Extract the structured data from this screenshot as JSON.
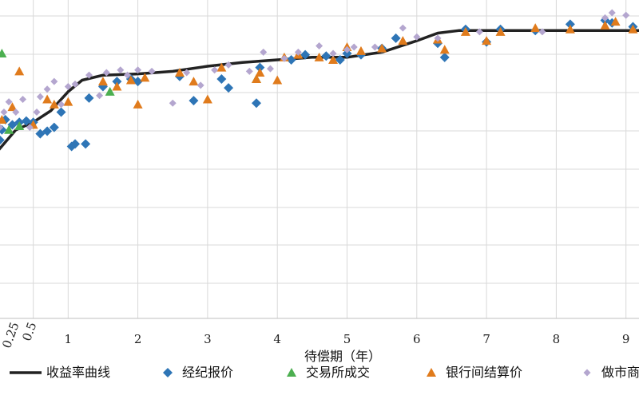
{
  "chart_data": {
    "type": "scatter",
    "title": "",
    "xlabel": "待偿期（年）",
    "ylabel": "",
    "xlim": [
      0,
      9.2
    ],
    "ylim": [
      -7.2,
      5.3
    ],
    "x_ticks": [
      {
        "value": 0.25,
        "label": "0.25",
        "rotated": true
      },
      {
        "value": 0.5,
        "label": "0.5",
        "rotated": true
      },
      {
        "value": 1,
        "label": "1"
      },
      {
        "value": 2,
        "label": "2"
      },
      {
        "value": 3,
        "label": "3"
      },
      {
        "value": 4,
        "label": "4"
      },
      {
        "value": 5,
        "label": "5"
      },
      {
        "value": 6,
        "label": "6"
      },
      {
        "value": 7,
        "label": "7"
      },
      {
        "value": 8,
        "label": "8"
      },
      {
        "value": 9,
        "label": "9"
      }
    ],
    "grid": "vertical and horizontal",
    "legend_position": "bottom",
    "series": [
      {
        "name": "收益率曲线",
        "kind": "line",
        "color": "#222222",
        "marker": "none",
        "points": [
          [
            0,
            -0.6
          ],
          [
            0.25,
            0.2
          ],
          [
            0.5,
            0.5
          ],
          [
            0.75,
            0.95
          ],
          [
            1,
            1.7
          ],
          [
            1.2,
            2.15
          ],
          [
            1.5,
            2.35
          ],
          [
            2,
            2.4
          ],
          [
            2.5,
            2.5
          ],
          [
            3,
            2.7
          ],
          [
            3.5,
            2.85
          ],
          [
            4,
            2.95
          ],
          [
            4.5,
            3.05
          ],
          [
            5,
            3.05
          ],
          [
            5.5,
            3.25
          ],
          [
            6,
            3.7
          ],
          [
            6.3,
            4.0
          ],
          [
            6.6,
            4.1
          ],
          [
            7,
            4.1
          ],
          [
            8,
            4.1
          ],
          [
            9,
            4.1
          ],
          [
            9.2,
            4.1
          ]
        ]
      },
      {
        "name": "经纪报价",
        "kind": "scatter",
        "color": "#2e75b6",
        "marker": "diamond",
        "points": [
          [
            0.02,
            -0.2
          ],
          [
            0.05,
            0.2
          ],
          [
            0.1,
            0.6
          ],
          [
            0.2,
            0.4
          ],
          [
            0.3,
            0.5
          ],
          [
            0.4,
            0.55
          ],
          [
            0.5,
            0.5
          ],
          [
            0.6,
            0.05
          ],
          [
            0.7,
            0.15
          ],
          [
            0.8,
            0.3
          ],
          [
            0.9,
            0.9
          ],
          [
            1.05,
            -0.45
          ],
          [
            1.1,
            -0.35
          ],
          [
            1.25,
            -0.35
          ],
          [
            1.3,
            1.45
          ],
          [
            1.5,
            1.9
          ],
          [
            1.7,
            2.1
          ],
          [
            1.9,
            2.2
          ],
          [
            2,
            2.1
          ],
          [
            2.6,
            2.3
          ],
          [
            2.8,
            1.35
          ],
          [
            3.2,
            2.2
          ],
          [
            3.3,
            1.85
          ],
          [
            3.7,
            1.25
          ],
          [
            3.75,
            2.65
          ],
          [
            4.2,
            2.95
          ],
          [
            4.4,
            3.15
          ],
          [
            4.7,
            3.1
          ],
          [
            4.9,
            2.95
          ],
          [
            5.0,
            3.2
          ],
          [
            5.2,
            3.15
          ],
          [
            5.5,
            3.4
          ],
          [
            5.7,
            3.8
          ],
          [
            6.3,
            3.6
          ],
          [
            6.4,
            3.05
          ],
          [
            6.7,
            4.15
          ],
          [
            7.0,
            3.65
          ],
          [
            7.2,
            4.15
          ],
          [
            7.7,
            4.1
          ],
          [
            8.2,
            4.35
          ],
          [
            8.7,
            4.5
          ],
          [
            8.8,
            4.4
          ],
          [
            9.1,
            4.25
          ]
        ]
      },
      {
        "name": "交易所成交",
        "kind": "scatter",
        "color": "#4caf50",
        "marker": "triangle",
        "points": [
          [
            0.05,
            3.2
          ],
          [
            0.15,
            0.2
          ],
          [
            0.3,
            0.35
          ],
          [
            1.6,
            1.7
          ],
          [
            3.7,
            2.2
          ]
        ]
      },
      {
        "name": "银行间结算价",
        "kind": "scatter",
        "color": "#e07b1c",
        "marker": "triangle",
        "points": [
          [
            0.05,
            0.6
          ],
          [
            0.2,
            1.1
          ],
          [
            0.3,
            2.5
          ],
          [
            0.5,
            0.4
          ],
          [
            0.7,
            1.4
          ],
          [
            0.8,
            1.2
          ],
          [
            1.0,
            1.3
          ],
          [
            1.5,
            2.1
          ],
          [
            1.7,
            1.9
          ],
          [
            1.9,
            2.15
          ],
          [
            2,
            1.2
          ],
          [
            2.1,
            2.25
          ],
          [
            2.6,
            2.45
          ],
          [
            2.8,
            2.1
          ],
          [
            3.0,
            1.4
          ],
          [
            3.2,
            2.65
          ],
          [
            3.7,
            2.2
          ],
          [
            3.75,
            2.45
          ],
          [
            4.0,
            2.15
          ],
          [
            4.1,
            3.05
          ],
          [
            4.3,
            3.15
          ],
          [
            4.6,
            3.05
          ],
          [
            4.8,
            2.95
          ],
          [
            5.0,
            3.45
          ],
          [
            5.2,
            3.3
          ],
          [
            5.5,
            3.4
          ],
          [
            5.8,
            3.7
          ],
          [
            6.3,
            3.75
          ],
          [
            6.4,
            3.35
          ],
          [
            6.7,
            4.05
          ],
          [
            7.0,
            3.7
          ],
          [
            7.2,
            4.05
          ],
          [
            7.7,
            4.2
          ],
          [
            8.2,
            4.15
          ],
          [
            8.7,
            4.3
          ],
          [
            8.85,
            4.45
          ],
          [
            9.1,
            4.15
          ]
        ]
      },
      {
        "name": "做市商报价",
        "kind": "scatter",
        "color": "#b4a6cf",
        "marker": "small-diamond",
        "points": [
          [
            0.02,
            0.3
          ],
          [
            0.08,
            0.9
          ],
          [
            0.15,
            1.3
          ],
          [
            0.25,
            0.9
          ],
          [
            0.35,
            1.4
          ],
          [
            0.45,
            0.3
          ],
          [
            0.55,
            0.9
          ],
          [
            0.6,
            1.5
          ],
          [
            0.7,
            1.8
          ],
          [
            0.8,
            2.1
          ],
          [
            0.9,
            1.2
          ],
          [
            1.0,
            1.9
          ],
          [
            1.1,
            2.0
          ],
          [
            1.3,
            2.35
          ],
          [
            1.45,
            1.55
          ],
          [
            1.55,
            2.45
          ],
          [
            1.75,
            2.55
          ],
          [
            1.85,
            2.35
          ],
          [
            2.0,
            2.55
          ],
          [
            2.2,
            2.5
          ],
          [
            2.5,
            1.25
          ],
          [
            2.7,
            2.45
          ],
          [
            2.9,
            1.95
          ],
          [
            3.1,
            2.55
          ],
          [
            3.3,
            2.75
          ],
          [
            3.6,
            2.5
          ],
          [
            3.8,
            3.25
          ],
          [
            3.9,
            2.6
          ],
          [
            4.1,
            3.0
          ],
          [
            4.3,
            3.25
          ],
          [
            4.6,
            3.5
          ],
          [
            4.8,
            3.2
          ],
          [
            5.0,
            3.35
          ],
          [
            5.1,
            3.45
          ],
          [
            5.4,
            3.45
          ],
          [
            5.8,
            4.2
          ],
          [
            6.0,
            3.85
          ],
          [
            6.3,
            3.8
          ],
          [
            6.9,
            4.05
          ],
          [
            7.8,
            4.05
          ],
          [
            8.7,
            4.6
          ],
          [
            8.8,
            4.8
          ],
          [
            9.0,
            4.7
          ]
        ]
      }
    ]
  }
}
